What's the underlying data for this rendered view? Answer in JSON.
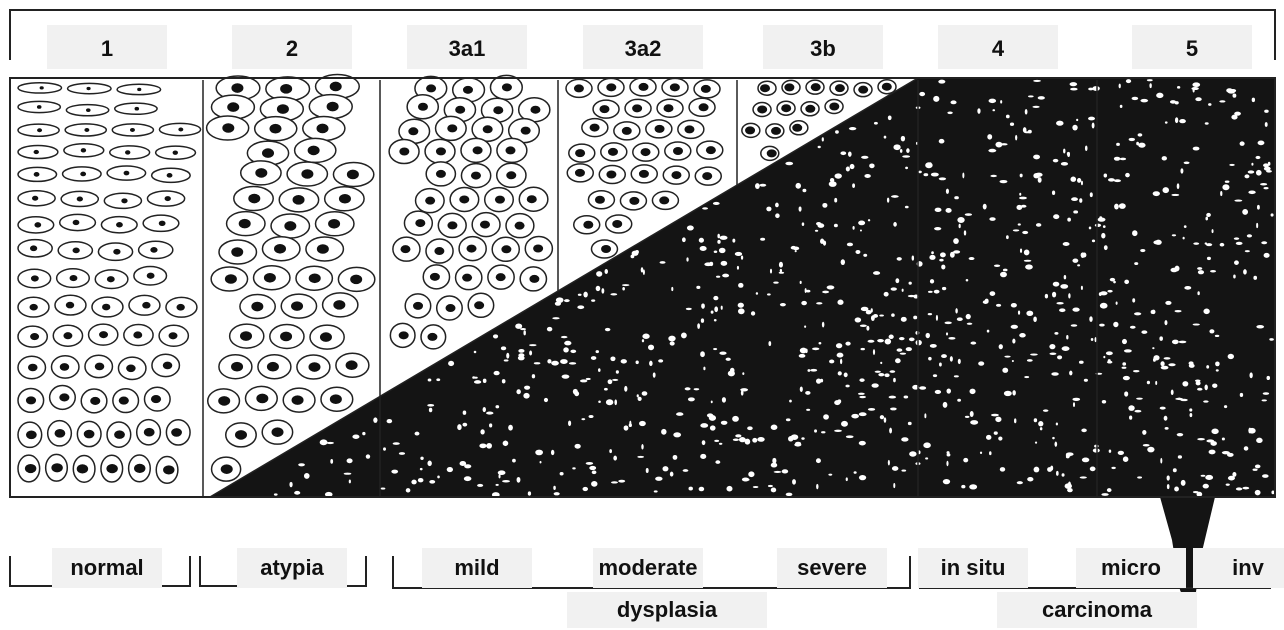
{
  "stages": [
    "1",
    "2",
    "3a1",
    "3a2",
    "3b",
    "4",
    "5"
  ],
  "labels": [
    "normal",
    "atypia",
    "mild",
    "moderate",
    "severe",
    "in situ",
    "micro",
    "inv"
  ],
  "groups": [
    "dysplasia",
    "carcinoma"
  ]
}
